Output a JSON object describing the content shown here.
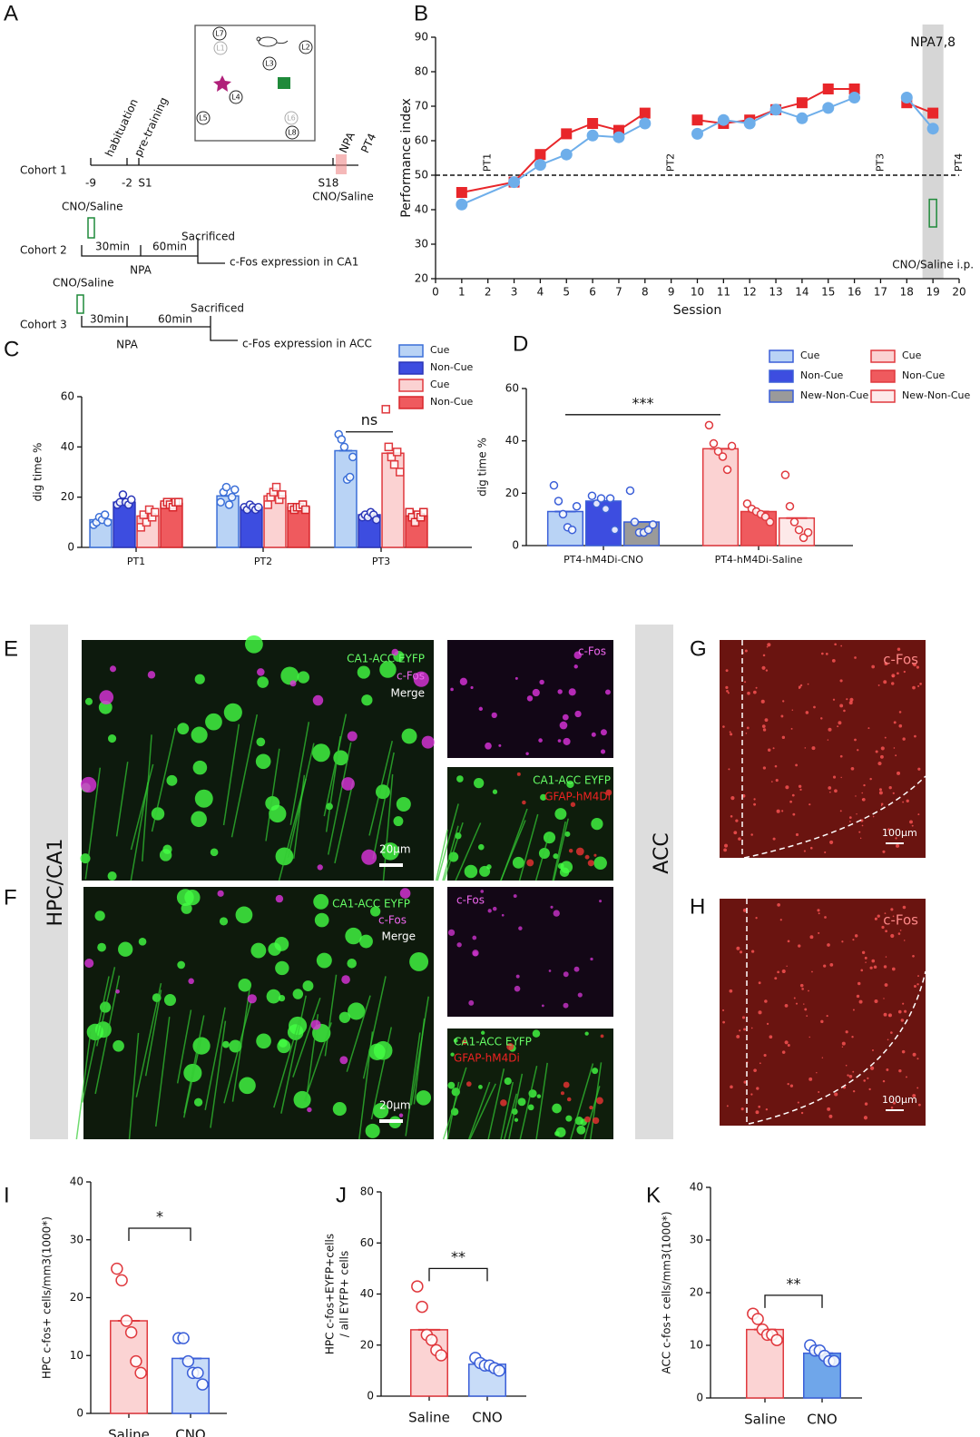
{
  "panel_labels": [
    "A",
    "B",
    "C",
    "D",
    "E",
    "F",
    "G",
    "H",
    "I",
    "J",
    "K"
  ],
  "diagram": {
    "arena": [
      "L7",
      "L1",
      "L2",
      "L3",
      "L4",
      "L5",
      "L6",
      "L8"
    ],
    "cohort1": {
      "name": "Cohort 1",
      "ticks": [
        "-9",
        "-2",
        "S1",
        "S18"
      ],
      "phases": [
        "habituation",
        "pre-training",
        "NPA",
        "PT4"
      ],
      "treatment": "CNO/Saline"
    },
    "cohort2": {
      "name": "Cohort 2",
      "treatment": "CNO/Saline",
      "intervals": [
        "30min",
        "60min"
      ],
      "event": "NPA",
      "end": "Sacrificed",
      "readout": "c-Fos expression in CA1"
    },
    "cohort3": {
      "name": "Cohort 3",
      "treatment": "CNO/Saline",
      "intervals": [
        "30min",
        "60min"
      ],
      "event": "NPA",
      "end": "Sacrificed",
      "readout": "c-Fos expression in ACC"
    }
  },
  "side_labels": [
    "HPC/CA1",
    "ACC"
  ],
  "images": {
    "E": {
      "main": [
        "CA1-ACC EYFP",
        "c-Fos",
        "Merge"
      ],
      "scale": "20μm",
      "top": "c-Fos",
      "bottom": [
        "CA1-ACC EYFP",
        "GFAP-hM4Di"
      ]
    },
    "F": {
      "main": [
        "CA1-ACC EYFP",
        "c-Fos",
        "Merge"
      ],
      "scale": "20μm",
      "top": "c-Fos",
      "bottom": [
        "CA1-ACC EYFP",
        "GFAP-hM4Di"
      ]
    },
    "G": {
      "label": "c-Fos",
      "scale": "100μm"
    },
    "H": {
      "label": "c-Fos",
      "scale": "100μm"
    }
  },
  "chart_data": [
    {
      "type": "line",
      "xlabel": "Session",
      "ylabel": "Performance index",
      "x": [
        1,
        3,
        4,
        5,
        6,
        7,
        8,
        9,
        10,
        11,
        12,
        13,
        14,
        15,
        16,
        17,
        18,
        19
      ],
      "series": [
        {
          "color": "#e8262a",
          "marker": "square",
          "values": [
            45,
            48,
            56,
            62,
            65,
            63,
            68,
            null,
            66,
            65,
            66,
            69,
            71,
            75,
            75,
            null,
            71,
            68
          ]
        },
        {
          "color": "#6eaeea",
          "marker": "circle",
          "values": [
            41.5,
            48,
            53,
            56,
            61.5,
            61,
            65,
            null,
            62,
            66,
            65,
            69,
            66.5,
            69.5,
            72.5,
            null,
            72.5,
            63.5
          ]
        }
      ],
      "xlim": [
        0,
        20
      ],
      "xticks": [
        0,
        1,
        2,
        3,
        4,
        5,
        6,
        7,
        8,
        9,
        10,
        11,
        12,
        13,
        14,
        15,
        16,
        17,
        18,
        19,
        20
      ],
      "ylim": [
        20,
        90
      ],
      "yticks": [
        20,
        30,
        40,
        50,
        60,
        70,
        80,
        90
      ],
      "reference_line": 50,
      "annotations": [
        {
          "x": 2,
          "text": "PT1"
        },
        {
          "x": 9,
          "text": "PT2"
        },
        {
          "x": 17,
          "text": "PT3"
        },
        {
          "x": 20,
          "text": "PT4"
        }
      ],
      "shaded": {
        "from": 18.6,
        "to": 19.4,
        "label": "NPA7,8"
      },
      "note": "CNO/Saline i.p."
    },
    {
      "type": "bar",
      "ylabel": "dig time %",
      "categories": [
        "PT1",
        "PT2",
        "PT3"
      ],
      "ylim": [
        0,
        60
      ],
      "yticks": [
        0,
        20,
        40,
        60
      ],
      "series": [
        {
          "name": "Cue",
          "color": "#b9d3f5",
          "edge": "#3b6fd8",
          "values": [
            11,
            20.5,
            38.5
          ],
          "points": [
            [
              9,
              10,
              12,
              11,
              13,
              10
            ],
            [
              18,
              22,
              24,
              17,
              20,
              23
            ],
            [
              45,
              43,
              40,
              27,
              28,
              36
            ]
          ]
        },
        {
          "name": "Non-Cue",
          "color": "#3d4de0",
          "edge": "#2a35b8",
          "values": [
            18,
            16,
            13
          ],
          "points": [
            [
              17,
              18,
              21,
              18,
              17,
              19
            ],
            [
              16,
              15,
              17,
              16,
              15,
              16
            ],
            [
              12,
              13,
              12,
              14,
              13,
              11
            ]
          ]
        },
        {
          "name": "Cue",
          "color": "#fbd2d2",
          "edge": "#e0393e",
          "marker": "square",
          "values": [
            12.5,
            20.5,
            37.5
          ],
          "points": [
            [
              8,
              13,
              10,
              15,
              12,
              14
            ],
            [
              17,
              20,
              22,
              24,
              19,
              21
            ],
            [
              55,
              40,
              36,
              33,
              38,
              30
            ]
          ]
        },
        {
          "name": "Non-Cue",
          "color": "#ef5a5e",
          "edge": "#d8262b",
          "marker": "square",
          "values": [
            17.5,
            16,
            12.5
          ],
          "points": [
            [
              17,
              18,
              17,
              16,
              18,
              18
            ],
            [
              16,
              15,
              16,
              16,
              17,
              15
            ],
            [
              14,
              12,
              10,
              13,
              12,
              14
            ]
          ]
        }
      ],
      "significance": [
        {
          "label": "ns",
          "y": 46,
          "from": [
            2,
            0
          ],
          "to": [
            2,
            2
          ]
        }
      ]
    },
    {
      "type": "bar",
      "ylabel": "dig time %",
      "categories": [
        "PT4-hM4Di-CNO",
        "PT4-hM4Di-Saline"
      ],
      "ylim": [
        0,
        60
      ],
      "yticks": [
        0,
        20,
        40,
        60
      ],
      "series": [
        {
          "name": "Cue",
          "color": "#b9d3f5",
          "edge": "#3b5fd8",
          "values": [
            13,
            null
          ],
          "points": [
            [
              23,
              17,
              12,
              7,
              6,
              15
            ],
            null
          ]
        },
        {
          "name": "Non-Cue",
          "color": "#3d4de0",
          "edge": "#3b5fd8",
          "values": [
            17,
            null
          ],
          "points": [
            [
              19,
              16,
              18,
              14,
              18,
              6
            ],
            null
          ]
        },
        {
          "name": "New-Non-Cue",
          "color": "#9a9a9a",
          "edge": "#3b5fd8",
          "values": [
            9,
            null
          ],
          "points": [
            [
              21,
              9,
              5,
              5,
              6,
              8
            ],
            null
          ]
        },
        {
          "name": "Cue",
          "color": "#fbd2d2",
          "edge": "#e0393e",
          "values": [
            null,
            37
          ],
          "points": [
            null,
            [
              46,
              39,
              36,
              34,
              29,
              38
            ]
          ]
        },
        {
          "name": "Non-Cue",
          "color": "#ef5a5e",
          "edge": "#e0393e",
          "values": [
            null,
            13
          ],
          "points": [
            null,
            [
              16,
              14,
              13,
              12,
              11,
              9
            ]
          ]
        },
        {
          "name": "New-Non-Cue",
          "color": "#fde9e9",
          "edge": "#e0393e",
          "values": [
            null,
            10.5
          ],
          "points": [
            null,
            [
              27,
              15,
              9,
              6,
              3,
              5
            ]
          ]
        }
      ],
      "significance": [
        {
          "label": "***",
          "y": 50,
          "from": [
            0,
            0
          ],
          "to": [
            1,
            3
          ]
        }
      ]
    },
    {
      "type": "bar",
      "ylabel": "HPC c-fos+ cells/mm3(1000*)",
      "categories": [
        "Saline",
        "CNO"
      ],
      "ylim": [
        0,
        40
      ],
      "yticks": [
        0,
        10,
        20,
        30,
        40
      ],
      "series": [
        {
          "colors": [
            "#fbd3d3",
            "#c8dcf8"
          ],
          "edges": [
            "#e0393e",
            "#3b5fd8"
          ],
          "values": [
            16,
            9.5
          ],
          "points": [
            [
              25,
              23,
              16,
              14,
              9,
              7
            ],
            [
              13,
              13,
              9,
              7,
              7,
              5
            ]
          ]
        }
      ],
      "significance": [
        {
          "label": "*",
          "y": 32,
          "from": [
            0,
            0
          ],
          "to": [
            1,
            0
          ]
        }
      ]
    },
    {
      "type": "bar",
      "ylabel": [
        "HPC c-fos+EYFP+cells",
        "/ all EYFP+ cells"
      ],
      "categories": [
        "Saline",
        "CNO"
      ],
      "ylim": [
        0,
        80
      ],
      "yticks": [
        0,
        20,
        40,
        60,
        80
      ],
      "series": [
        {
          "colors": [
            "#fbd3d3",
            "#c8dcf8"
          ],
          "edges": [
            "#e0393e",
            "#3b5fd8"
          ],
          "values": [
            26,
            12.5
          ],
          "points": [
            [
              43,
              35,
              24,
              22,
              18,
              16
            ],
            [
              15,
              13,
              12,
              12,
              11,
              10
            ]
          ]
        }
      ],
      "significance": [
        {
          "label": "**",
          "y": 50,
          "from": [
            0,
            0
          ],
          "to": [
            1,
            0
          ]
        }
      ]
    },
    {
      "type": "bar",
      "ylabel": "ACC c-fos+ cells/mm3(1000*)",
      "categories": [
        "Saline",
        "CNO"
      ],
      "ylim": [
        0,
        40
      ],
      "yticks": [
        0,
        10,
        20,
        30,
        40
      ],
      "series": [
        {
          "colors": [
            "#fbd3d3",
            "#6fa6ea"
          ],
          "edges": [
            "#e0393e",
            "#3b5fd8"
          ],
          "values": [
            13,
            8.5
          ],
          "points": [
            [
              16,
              15,
              13,
              12,
              12,
              11
            ],
            [
              10,
              9,
              9,
              8,
              7,
              7
            ]
          ]
        }
      ],
      "significance": [
        {
          "label": "**",
          "y": 19.5,
          "from": [
            0,
            0
          ],
          "to": [
            1,
            0
          ]
        }
      ]
    }
  ]
}
